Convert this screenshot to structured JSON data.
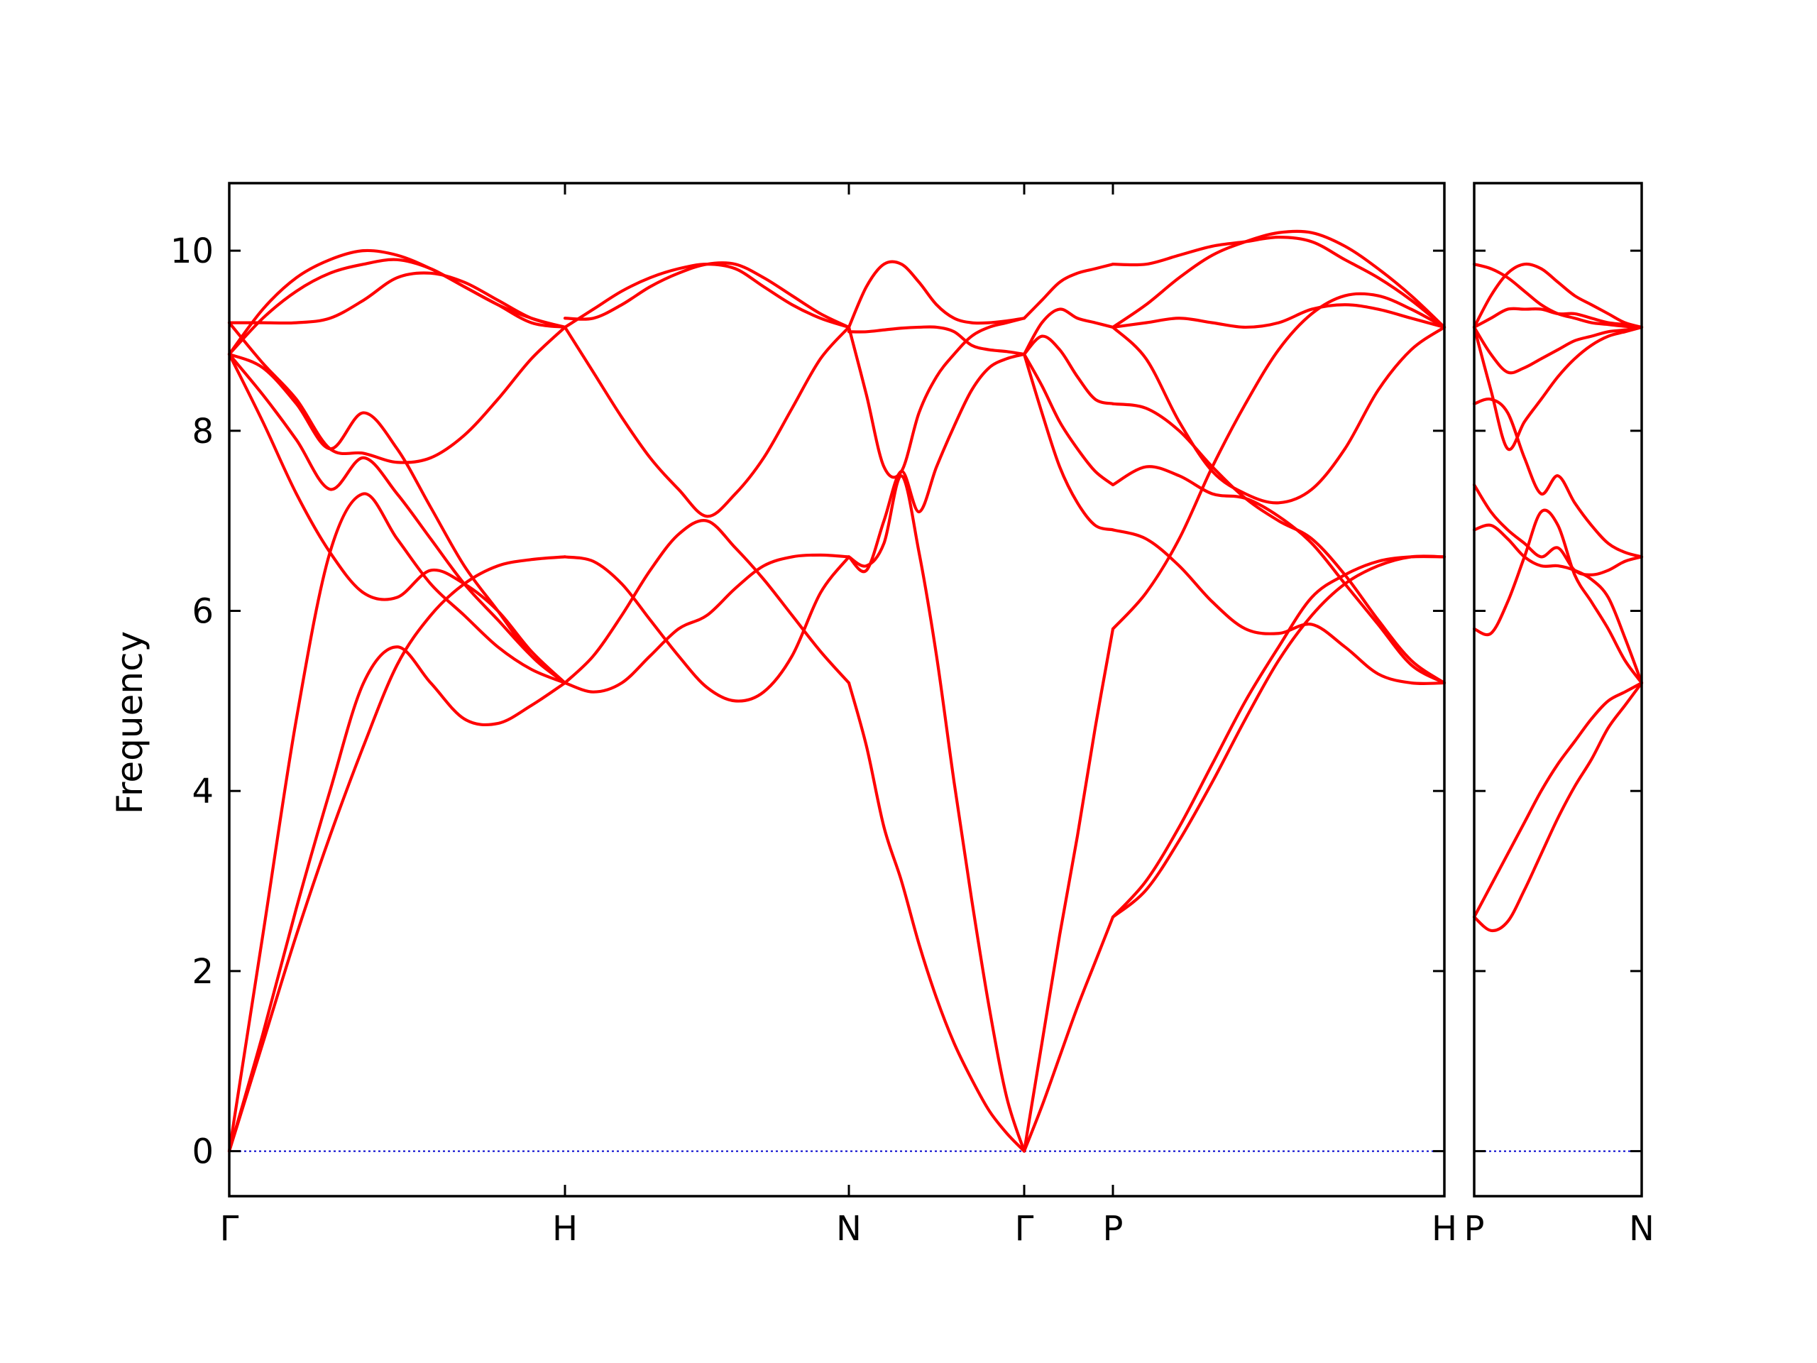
{
  "chart_data": {
    "type": "line",
    "title": "",
    "xlabel": "",
    "ylabel": "Frequency",
    "ylim": [
      -0.5,
      10.75
    ],
    "y_ticks": [
      0,
      2,
      4,
      6,
      8,
      10
    ],
    "grid": false,
    "legend": "none",
    "colors": {
      "bands": "#ff0000",
      "zero_line": "#0000cc",
      "axes": "#000000"
    },
    "panels": [
      {
        "x_labels": [
          "Γ",
          "H",
          "N",
          "Γ",
          "P",
          "H"
        ],
        "segments": [
          {
            "from": "Γ",
            "to": "H",
            "x": [
              0,
              0.1,
              0.2,
              0.3,
              0.4,
              0.5,
              0.6,
              0.7,
              0.8,
              0.9,
              1.0
            ],
            "bands": [
              [
                0,
                1.2,
                2.4,
                3.5,
                4.5,
                5.4,
                5.95,
                6.3,
                6.5,
                6.57,
                6.6
              ],
              [
                0,
                1.3,
                2.7,
                4.0,
                5.2,
                5.6,
                5.2,
                4.8,
                4.75,
                4.95,
                5.2
              ],
              [
                0,
                2.4,
                4.8,
                6.65,
                7.3,
                6.8,
                6.3,
                5.95,
                5.6,
                5.35,
                5.2
              ],
              [
                8.85,
                8.1,
                7.3,
                6.65,
                6.2,
                6.15,
                6.45,
                6.3,
                6.0,
                5.55,
                5.2
              ],
              [
                8.85,
                8.4,
                7.9,
                7.35,
                7.7,
                7.3,
                6.8,
                6.3,
                5.9,
                5.5,
                5.2
              ],
              [
                8.85,
                8.7,
                8.3,
                7.8,
                8.2,
                7.8,
                7.15,
                6.5,
                6.0,
                5.5,
                5.2
              ],
              [
                9.2,
                8.75,
                8.35,
                7.8,
                7.75,
                7.65,
                7.7,
                7.95,
                8.35,
                8.8,
                9.15
              ],
              [
                9.2,
                9.2,
                9.2,
                9.25,
                9.45,
                9.7,
                9.75,
                9.65,
                9.45,
                9.25,
                9.15
              ],
              [
                8.85,
                9.25,
                9.55,
                9.75,
                9.85,
                9.9,
                9.8,
                9.6,
                9.4,
                9.2,
                9.15
              ],
              [
                8.85,
                9.35,
                9.7,
                9.9,
                10.0,
                9.95,
                9.8,
                9.6,
                9.4,
                9.25,
                9.15
              ]
            ]
          },
          {
            "from": "H",
            "to": "N",
            "x": [
              0,
              0.1,
              0.2,
              0.3,
              0.4,
              0.5,
              0.6,
              0.7,
              0.8,
              0.9,
              1.0
            ],
            "bands": [
              [
                6.6,
                6.55,
                6.3,
                5.9,
                5.5,
                5.15,
                5.0,
                5.1,
                5.5,
                6.2,
                6.6
              ],
              [
                5.2,
                5.1,
                5.2,
                5.5,
                5.8,
                5.95,
                6.25,
                6.5,
                6.6,
                6.62,
                6.6
              ],
              [
                5.2,
                5.5,
                5.95,
                6.45,
                6.85,
                7.0,
                6.7,
                6.35,
                5.95,
                5.55,
                5.2
              ],
              [
                9.15,
                8.65,
                8.15,
                7.7,
                7.35,
                7.05,
                7.3,
                7.7,
                8.25,
                8.8,
                9.15
              ],
              [
                9.15,
                9.35,
                9.55,
                9.7,
                9.8,
                9.85,
                9.8,
                9.6,
                9.4,
                9.25,
                9.15
              ],
              [
                9.25,
                9.25,
                9.4,
                9.6,
                9.75,
                9.85,
                9.85,
                9.7,
                9.5,
                9.3,
                9.15
              ]
            ]
          },
          {
            "from": "N",
            "to": "Γ",
            "x": [
              0,
              0.1,
              0.2,
              0.3,
              0.4,
              0.5,
              0.6,
              0.7,
              0.8,
              0.9,
              1.0
            ],
            "bands": [
              [
                5.2,
                4.5,
                3.6,
                3.0,
                2.3,
                1.7,
                1.2,
                0.8,
                0.45,
                0.2,
                0
              ],
              [
                6.6,
                6.5,
                6.75,
                7.5,
                6.65,
                5.5,
                4.1,
                2.8,
                1.6,
                0.6,
                0
              ],
              [
                6.6,
                6.45,
                7.0,
                7.55,
                7.1,
                7.6,
                8.05,
                8.45,
                8.7,
                8.8,
                8.85
              ],
              [
                9.15,
                8.4,
                7.6,
                7.55,
                8.2,
                8.6,
                8.85,
                9.05,
                9.15,
                9.2,
                9.25
              ],
              [
                9.1,
                9.1,
                9.12,
                9.14,
                9.15,
                9.15,
                9.1,
                8.95,
                8.9,
                8.88,
                8.85
              ],
              [
                9.15,
                9.6,
                9.85,
                9.85,
                9.65,
                9.4,
                9.25,
                9.2,
                9.2,
                9.22,
                9.25
              ]
            ]
          },
          {
            "from": "Γ",
            "to": "P",
            "x": [
              0,
              0.2,
              0.4,
              0.6,
              0.8,
              1.0
            ],
            "bands": [
              [
                0,
                0.5,
                1.05,
                1.6,
                2.1,
                2.6
              ],
              [
                0,
                1.2,
                2.4,
                3.5,
                4.7,
                5.8
              ],
              [
                8.85,
                8.2,
                7.6,
                7.2,
                6.95,
                6.9
              ],
              [
                8.85,
                8.5,
                8.1,
                7.8,
                7.55,
                7.4
              ],
              [
                8.85,
                9.05,
                8.9,
                8.6,
                8.35,
                8.3
              ],
              [
                9.25,
                9.45,
                9.65,
                9.75,
                9.8,
                9.85
              ],
              [
                8.85,
                9.2,
                9.35,
                9.25,
                9.2,
                9.15
              ]
            ]
          },
          {
            "from": "P",
            "to": "H",
            "x": [
              0,
              0.1,
              0.2,
              0.3,
              0.4,
              0.5,
              0.6,
              0.7,
              0.8,
              0.9,
              1.0
            ],
            "bands": [
              [
                2.6,
                3.0,
                3.6,
                4.3,
                5.0,
                5.6,
                6.15,
                6.4,
                6.55,
                6.6,
                6.6
              ],
              [
                2.6,
                2.9,
                3.45,
                4.1,
                4.8,
                5.45,
                5.95,
                6.3,
                6.5,
                6.6,
                6.6
              ],
              [
                5.8,
                6.2,
                6.8,
                7.6,
                8.3,
                8.9,
                9.3,
                9.5,
                9.5,
                9.35,
                9.15
              ],
              [
                6.9,
                6.8,
                6.5,
                6.1,
                5.8,
                5.75,
                5.85,
                5.6,
                5.3,
                5.2,
                5.2
              ],
              [
                7.4,
                7.6,
                7.5,
                7.3,
                7.25,
                7.05,
                6.75,
                6.3,
                5.85,
                5.4,
                5.2
              ],
              [
                8.3,
                8.25,
                8.0,
                7.6,
                7.25,
                7.0,
                6.8,
                6.4,
                5.9,
                5.45,
                5.2
              ],
              [
                9.15,
                8.8,
                8.1,
                7.55,
                7.3,
                7.2,
                7.35,
                7.8,
                8.45,
                8.9,
                9.15
              ],
              [
                9.15,
                9.2,
                9.25,
                9.2,
                9.15,
                9.2,
                9.35,
                9.4,
                9.35,
                9.25,
                9.15
              ],
              [
                9.15,
                9.4,
                9.7,
                9.95,
                10.1,
                10.2,
                10.2,
                10.05,
                9.8,
                9.5,
                9.15
              ],
              [
                9.85,
                9.85,
                9.95,
                10.05,
                10.1,
                10.15,
                10.1,
                9.9,
                9.7,
                9.45,
                9.15
              ]
            ]
          }
        ]
      },
      {
        "x_labels": [
          "P",
          "N"
        ],
        "segments": [
          {
            "from": "P",
            "to": "N",
            "x": [
              0,
              0.1,
              0.2,
              0.3,
              0.4,
              0.5,
              0.6,
              0.7,
              0.8,
              0.9,
              1.0
            ],
            "bands": [
              [
                2.6,
                2.45,
                2.55,
                2.9,
                3.3,
                3.7,
                4.05,
                4.35,
                4.7,
                4.95,
                5.2
              ],
              [
                2.6,
                2.95,
                3.3,
                3.65,
                4.0,
                4.3,
                4.55,
                4.8,
                5.0,
                5.1,
                5.2
              ],
              [
                5.8,
                5.75,
                6.1,
                6.6,
                7.1,
                6.95,
                6.4,
                6.1,
                5.8,
                5.45,
                5.2
              ],
              [
                6.9,
                6.95,
                6.8,
                6.6,
                6.5,
                6.5,
                6.45,
                6.35,
                6.15,
                5.7,
                5.2
              ],
              [
                7.4,
                7.1,
                6.9,
                6.75,
                6.6,
                6.7,
                6.45,
                6.4,
                6.45,
                6.55,
                6.6
              ],
              [
                8.3,
                8.35,
                8.2,
                7.7,
                7.3,
                7.5,
                7.2,
                6.95,
                6.75,
                6.65,
                6.6
              ],
              [
                9.15,
                8.45,
                7.8,
                8.1,
                8.35,
                8.6,
                8.8,
                8.95,
                9.05,
                9.1,
                9.15
              ],
              [
                9.15,
                8.85,
                8.65,
                8.7,
                8.8,
                8.9,
                9.0,
                9.05,
                9.1,
                9.12,
                9.15
              ],
              [
                9.15,
                9.25,
                9.35,
                9.35,
                9.35,
                9.3,
                9.3,
                9.25,
                9.2,
                9.18,
                9.15
              ],
              [
                9.85,
                9.8,
                9.7,
                9.55,
                9.4,
                9.3,
                9.25,
                9.2,
                9.18,
                9.16,
                9.15
              ],
              [
                9.15,
                9.5,
                9.75,
                9.85,
                9.8,
                9.65,
                9.5,
                9.4,
                9.3,
                9.2,
                9.15
              ]
            ]
          }
        ]
      }
    ]
  }
}
